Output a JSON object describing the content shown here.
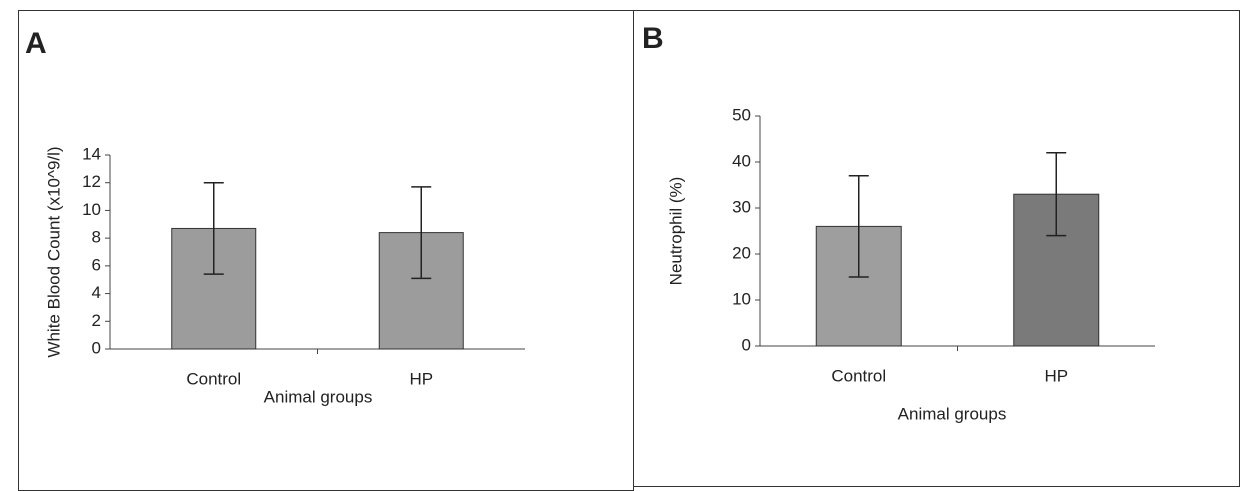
{
  "chart_data": [
    {
      "type": "bar",
      "title": "A",
      "ylabel": "White Blood Count (x10^9/l)",
      "xlabel": "Animal groups",
      "categories": [
        "Control",
        "HP"
      ],
      "values": [
        8.7,
        8.4
      ],
      "errors": [
        3.3,
        3.3
      ],
      "colors": [
        "#9c9c9c",
        "#9c9c9c"
      ],
      "ylim": [
        0,
        14
      ],
      "yticks": [
        0,
        2,
        4,
        6,
        8,
        10,
        12,
        14
      ]
    },
    {
      "type": "bar",
      "title": "B",
      "ylabel": "Neutrophil (%)",
      "xlabel": "Animal groups",
      "categories": [
        "Control",
        "HP"
      ],
      "values": [
        26,
        33
      ],
      "errors": [
        11,
        9
      ],
      "colors": [
        "#9e9e9e",
        "#7a7a7a"
      ],
      "ylim": [
        0,
        50
      ],
      "yticks": [
        0,
        10,
        20,
        30,
        40,
        50
      ]
    }
  ]
}
